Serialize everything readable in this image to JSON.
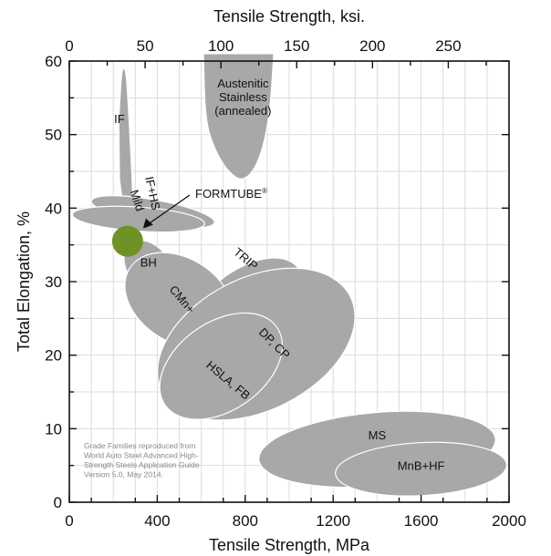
{
  "chart_data": {
    "type": "scatter",
    "title": "",
    "xlabel": "Tensile Strength, MPa",
    "x2label": "Tensile Strength, ksi.",
    "ylabel": "Total Elongation, %",
    "xlim": [
      0,
      2000
    ],
    "ylim": [
      0,
      60
    ],
    "x2lim_ksi": [
      0,
      290
    ],
    "xticks": [
      "0",
      "400",
      "800",
      "1200",
      "1600",
      "2000"
    ],
    "yticks": [
      "0",
      "10",
      "20",
      "30",
      "40",
      "50",
      "60"
    ],
    "x2ticks": [
      "0",
      "50",
      "100",
      "150",
      "200",
      "250"
    ],
    "grid": true,
    "grade_families": [
      {
        "name": "IF",
        "tensile_mpa": [
          220,
          320
        ],
        "elongation_pct": [
          38,
          59
        ]
      },
      {
        "name": "Austenitic Stainless (annealed)",
        "tensile_mpa": [
          600,
          960
        ],
        "elongation_pct": [
          44,
          60
        ]
      },
      {
        "name": "IF+HS",
        "tensile_mpa": [
          280,
          440
        ],
        "elongation_pct": [
          32,
          48
        ]
      },
      {
        "name": "Mild",
        "tensile_mpa": [
          240,
          360
        ],
        "elongation_pct": [
          30,
          48
        ]
      },
      {
        "name": "BH",
        "tensile_mpa": [
          280,
          480
        ],
        "elongation_pct": [
          28,
          36
        ]
      },
      {
        "name": "TRIP",
        "tensile_mpa": [
          520,
          980
        ],
        "elongation_pct": [
          25,
          38
        ]
      },
      {
        "name": "CMn+",
        "tensile_mpa": [
          280,
          720
        ],
        "elongation_pct": [
          20,
          36
        ]
      },
      {
        "name": "DP, CP",
        "tensile_mpa": [
          480,
          1240
        ],
        "elongation_pct": [
          12,
          35
        ]
      },
      {
        "name": "HSLA, FB",
        "tensile_mpa": [
          460,
          940
        ],
        "elongation_pct": [
          10,
          27
        ]
      },
      {
        "name": "MS",
        "tensile_mpa": [
          900,
          1920
        ],
        "elongation_pct": [
          2,
          13
        ]
      },
      {
        "name": "MnB+HF",
        "tensile_mpa": [
          1150,
          1980
        ],
        "elongation_pct": [
          1,
          8
        ]
      }
    ],
    "highlight_point": {
      "name": "FORMTUBE®",
      "tensile_mpa": 265,
      "elongation_pct": 35.5,
      "color": "#6f9225"
    },
    "family_color": "#a8a8a8",
    "note": [
      "Grade Families reproduced from",
      "World Auto Steel Advanced High-",
      "Strength Steels Application Guide",
      "Version 5.0, May 2014."
    ]
  }
}
